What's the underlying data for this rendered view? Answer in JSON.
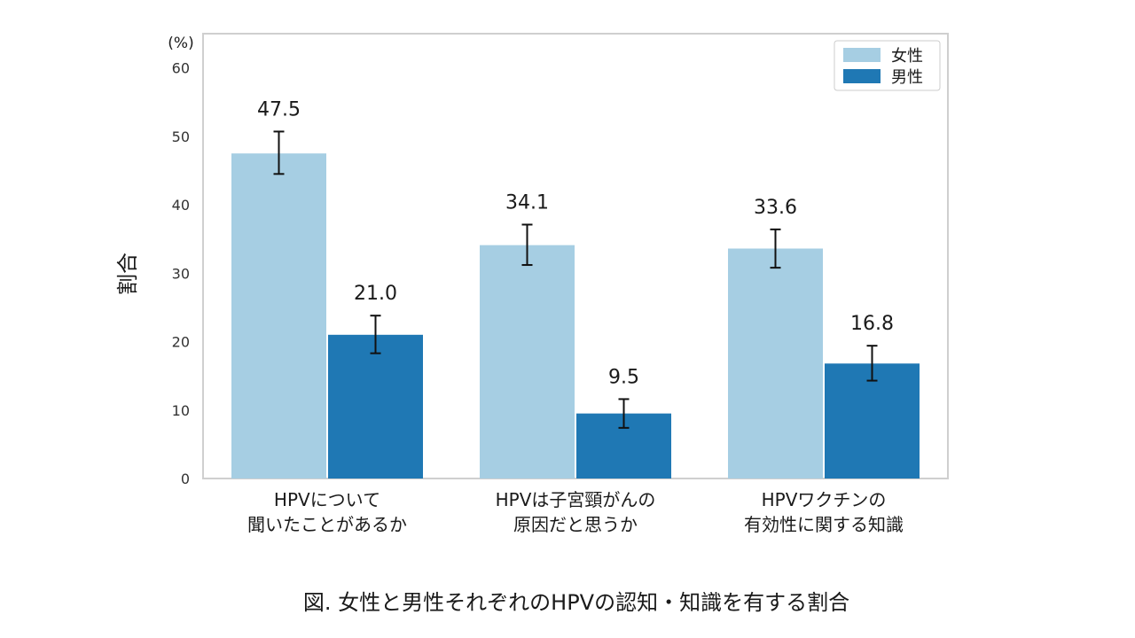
{
  "chart_data": {
    "type": "bar",
    "unit_label": "(%)",
    "ylabel": "割合",
    "ylim": [
      0,
      65
    ],
    "yticks": [
      0,
      10,
      20,
      30,
      40,
      50,
      60
    ],
    "grid": false,
    "legend_position": "top-right",
    "categories": [
      [
        "HPVについて",
        "聞いたことがあるか"
      ],
      [
        "HPVは子宮頸がんの",
        "原因だと思うか"
      ],
      [
        "HPVワクチンの",
        "有効性に関する知識"
      ]
    ],
    "series": [
      {
        "name": "女性",
        "color": "#a6cee3",
        "values": [
          47.5,
          34.1,
          33.6
        ],
        "labels": [
          "47.5",
          "34.1",
          "33.6"
        ],
        "error_low": [
          44.5,
          31.2,
          30.8
        ],
        "error_high": [
          50.7,
          37.1,
          36.4
        ]
      },
      {
        "name": "男性",
        "color": "#1f78b4",
        "values": [
          21.0,
          9.5,
          16.8
        ],
        "labels": [
          "21.0",
          "9.5",
          "16.8"
        ],
        "error_low": [
          18.3,
          7.4,
          14.3
        ],
        "error_high": [
          23.8,
          11.6,
          19.4
        ]
      }
    ]
  },
  "caption": "図.  女性と男性それぞれのHPVの認知・知識を有する割合"
}
